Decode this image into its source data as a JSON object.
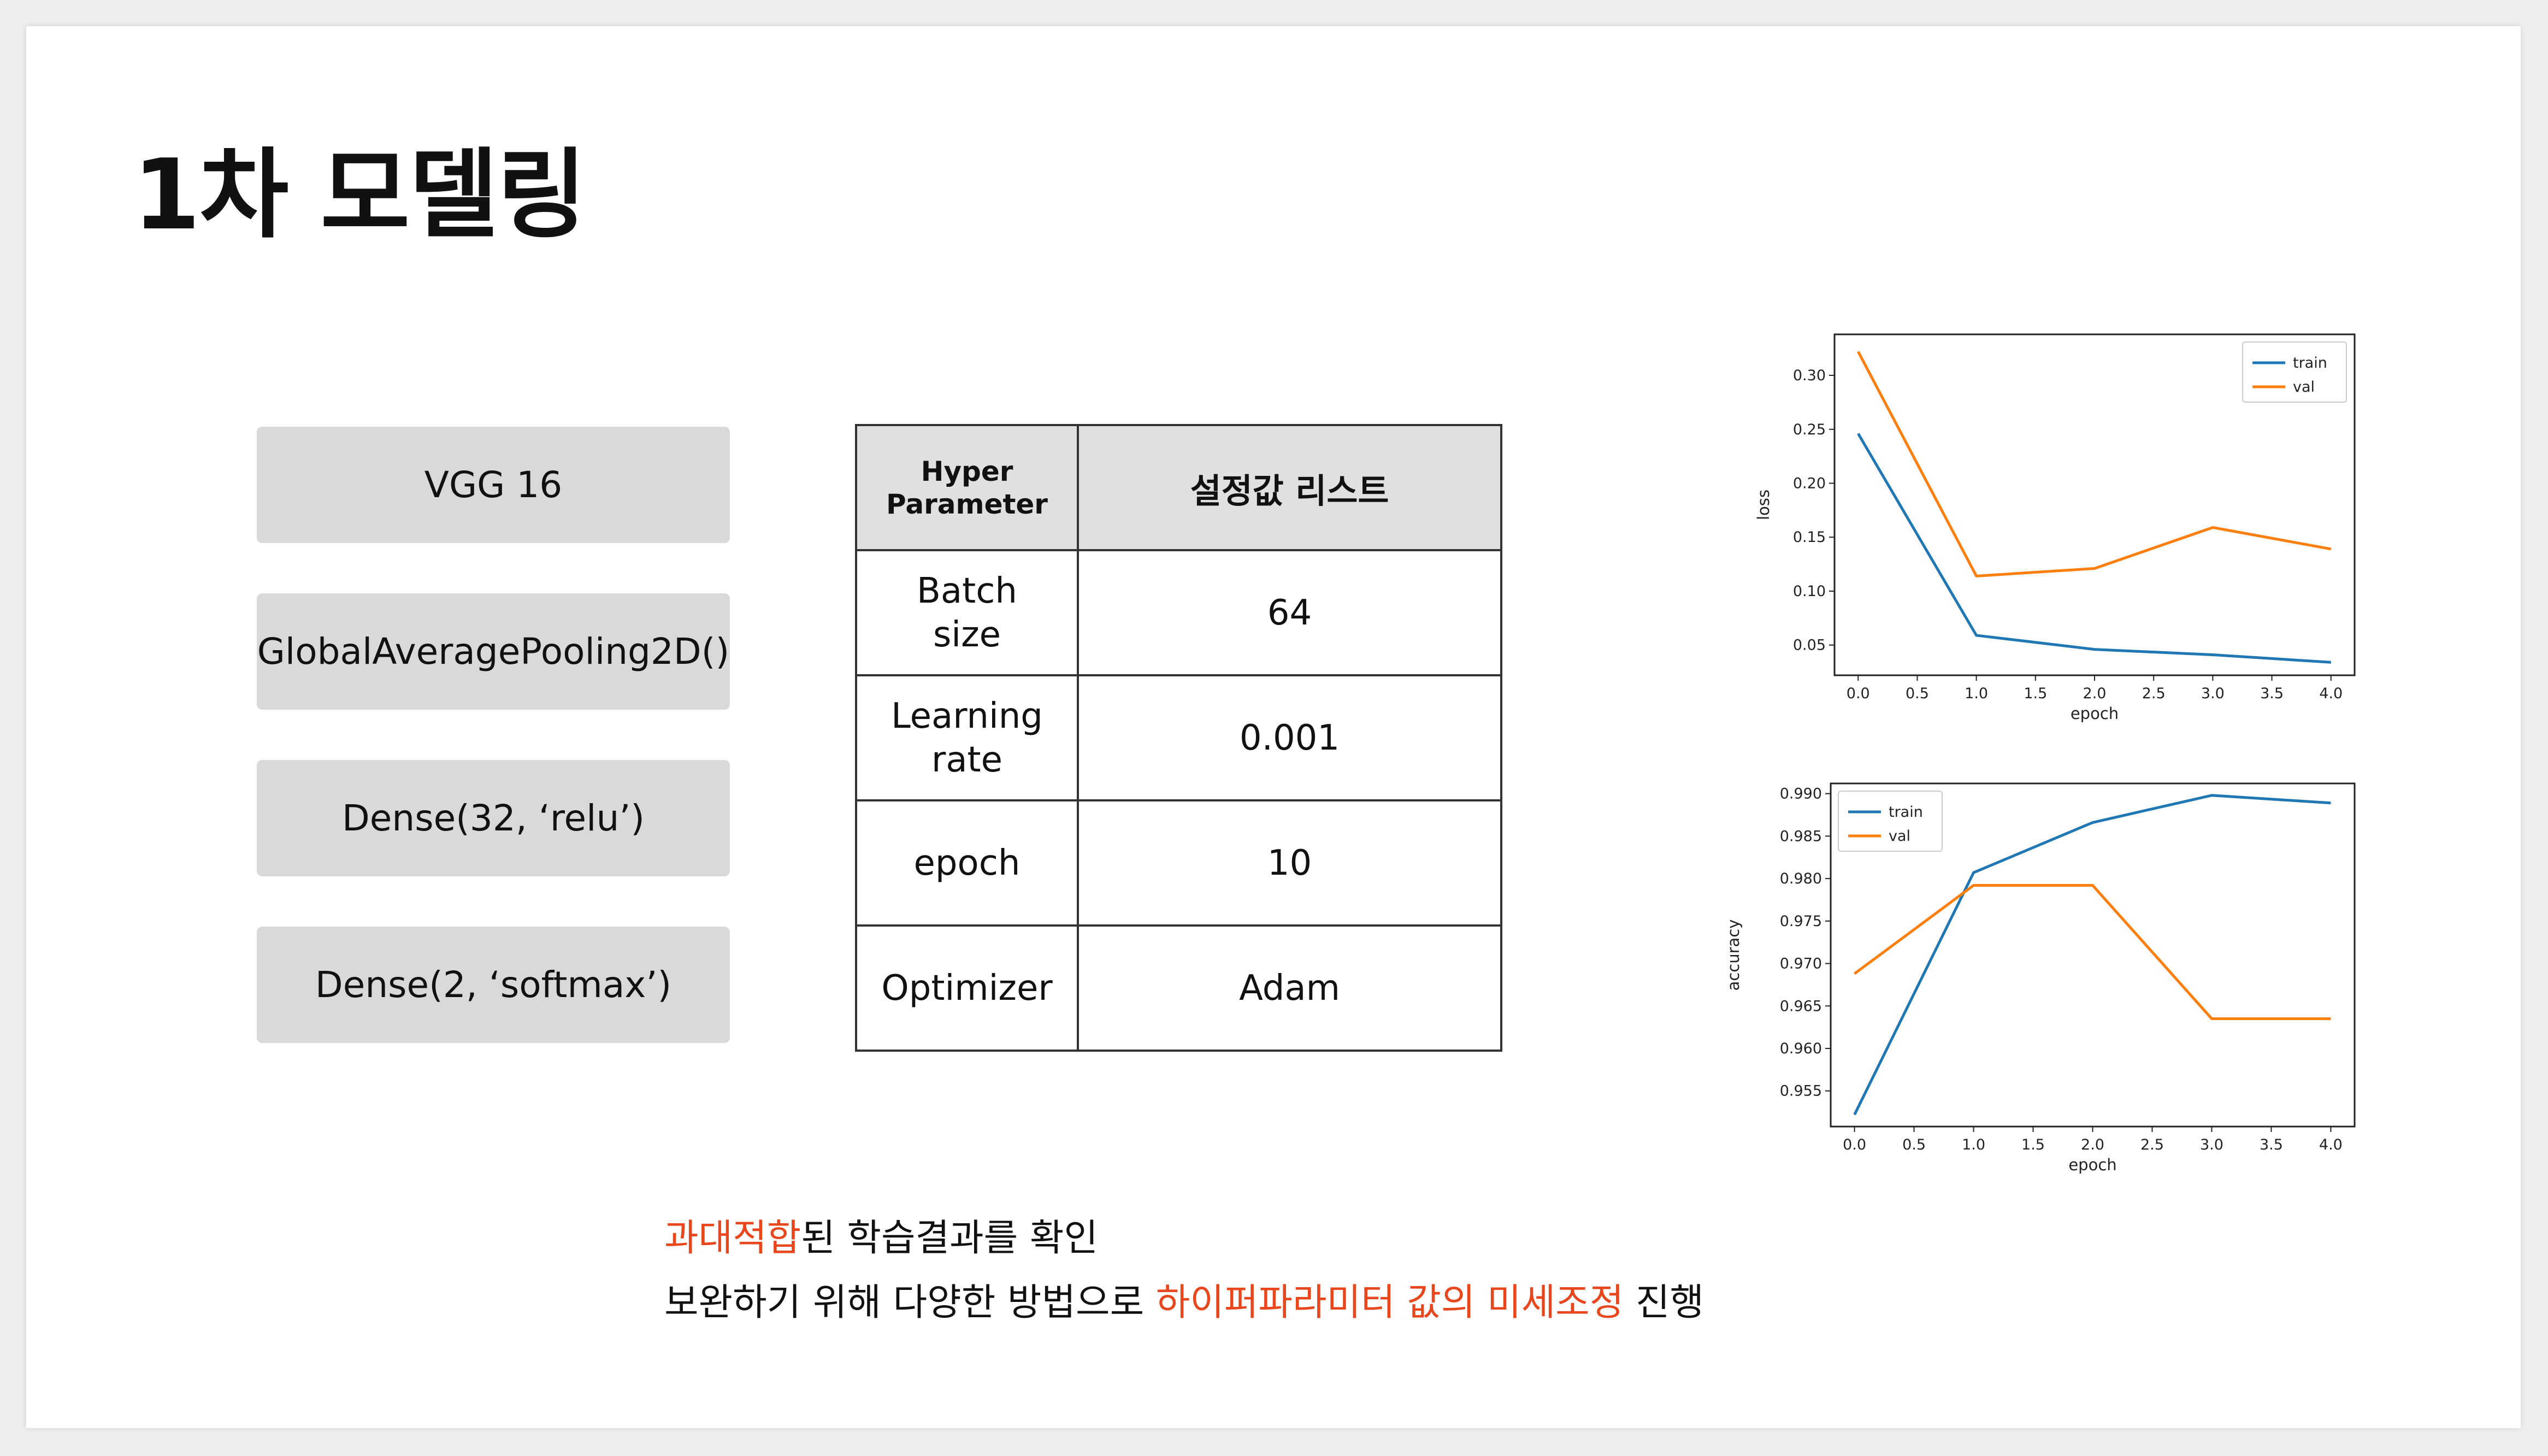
{
  "title": "1차 모델링",
  "layers": [
    "VGG 16",
    "GlobalAveragePooling2D()",
    "Dense(32, ‘relu’)",
    "Dense(2, ‘softmax’)"
  ],
  "hyperparam_table": {
    "header": {
      "col1": "Hyper\nParameter",
      "col2": "설정값 리스트"
    },
    "rows": [
      {
        "name": "Batch\nsize",
        "value": "64"
      },
      {
        "name": "Learning\nrate",
        "value": "0.001"
      },
      {
        "name": "epoch",
        "value": "10"
      },
      {
        "name": "Optimizer",
        "value": "Adam"
      }
    ]
  },
  "caption": {
    "line1": {
      "highlight": "과대적합",
      "rest": "된 학습결과를 확인"
    },
    "line2": {
      "prefix": "보완하기 위해 다양한 방법으로 ",
      "highlight": "하이퍼파라미터 값의 미세조정",
      "suffix": " 진행"
    }
  },
  "colors": {
    "train": "#1f77b4",
    "val": "#ff7f0e",
    "highlight": "#e8461d",
    "layer_bg": "#d9d9d9"
  },
  "chart_data": [
    {
      "type": "line",
      "xlabel": "epoch",
      "ylabel": "loss",
      "xlim": [
        -0.2,
        4.2
      ],
      "ylim": [
        0.022,
        0.338
      ],
      "xticks": [
        "0.0",
        "0.5",
        "1.0",
        "1.5",
        "2.0",
        "2.5",
        "3.0",
        "3.5",
        "4.0"
      ],
      "yticks": [
        "0.05",
        "0.10",
        "0.15",
        "0.20",
        "0.25",
        "0.30"
      ],
      "legend": "top-right",
      "x": [
        0,
        1,
        2,
        3,
        4
      ],
      "series": [
        {
          "name": "train",
          "values": [
            0.246,
            0.059,
            0.046,
            0.041,
            0.034
          ]
        },
        {
          "name": "val",
          "values": [
            0.322,
            0.114,
            0.121,
            0.159,
            0.139
          ]
        }
      ]
    },
    {
      "type": "line",
      "xlabel": "epoch",
      "ylabel": "accuracy",
      "xlim": [
        -0.2,
        4.2
      ],
      "ylim": [
        0.9508,
        0.9912
      ],
      "xticks": [
        "0.0",
        "0.5",
        "1.0",
        "1.5",
        "2.0",
        "2.5",
        "3.0",
        "3.5",
        "4.0"
      ],
      "yticks": [
        "0.955",
        "0.960",
        "0.965",
        "0.970",
        "0.975",
        "0.980",
        "0.985",
        "0.990"
      ],
      "legend": "top-left",
      "x": [
        0,
        1,
        2,
        3,
        4
      ],
      "series": [
        {
          "name": "train",
          "values": [
            0.9522,
            0.9807,
            0.9866,
            0.9898,
            0.9889
          ]
        },
        {
          "name": "val",
          "values": [
            0.9688,
            0.9792,
            0.9792,
            0.9635,
            0.9635
          ]
        }
      ]
    }
  ]
}
